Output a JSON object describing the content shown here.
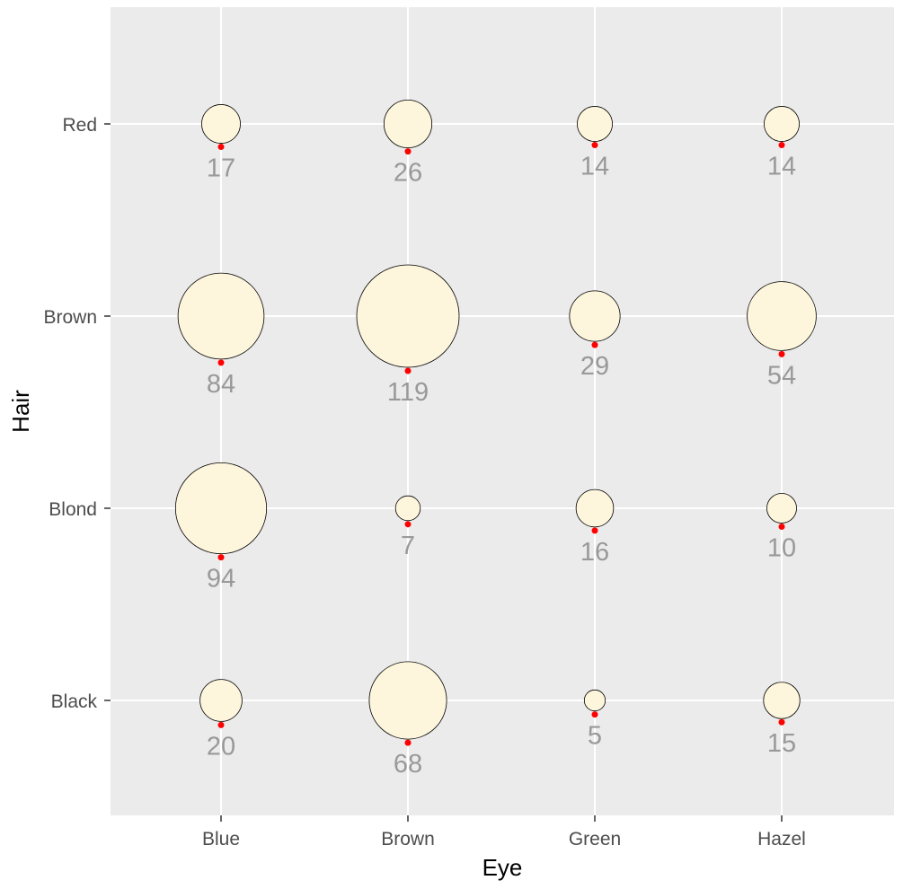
{
  "chart_data": {
    "type": "scatter",
    "xlabel": "Eye",
    "ylabel": "Hair",
    "x_categories": [
      "Blue",
      "Brown",
      "Green",
      "Hazel"
    ],
    "y_categories": [
      "Black",
      "Blond",
      "Brown",
      "Red"
    ],
    "points": [
      {
        "x": "Blue",
        "y": "Black",
        "value": 20
      },
      {
        "x": "Brown",
        "y": "Black",
        "value": 68
      },
      {
        "x": "Green",
        "y": "Black",
        "value": 5
      },
      {
        "x": "Hazel",
        "y": "Black",
        "value": 15
      },
      {
        "x": "Blue",
        "y": "Blond",
        "value": 94
      },
      {
        "x": "Brown",
        "y": "Blond",
        "value": 7
      },
      {
        "x": "Green",
        "y": "Blond",
        "value": 16
      },
      {
        "x": "Hazel",
        "y": "Blond",
        "value": 10
      },
      {
        "x": "Blue",
        "y": "Brown",
        "value": 84
      },
      {
        "x": "Brown",
        "y": "Brown",
        "value": 119
      },
      {
        "x": "Green",
        "y": "Brown",
        "value": 29
      },
      {
        "x": "Hazel",
        "y": "Brown",
        "value": 54
      },
      {
        "x": "Blue",
        "y": "Red",
        "value": 17
      },
      {
        "x": "Brown",
        "y": "Red",
        "value": 26
      },
      {
        "x": "Green",
        "y": "Red",
        "value": 14
      },
      {
        "x": "Hazel",
        "y": "Red",
        "value": 14
      }
    ],
    "grid": true,
    "legend": "none",
    "colors": {
      "panel_background": "#ebebeb",
      "gridline": "#ffffff",
      "bubble_fill": "#fdf5dc",
      "bubble_stroke": "#000000",
      "marker": "#ff0000",
      "count_label": "#999999",
      "tick_label": "#4d4d4d",
      "axis_title": "#000000"
    }
  }
}
